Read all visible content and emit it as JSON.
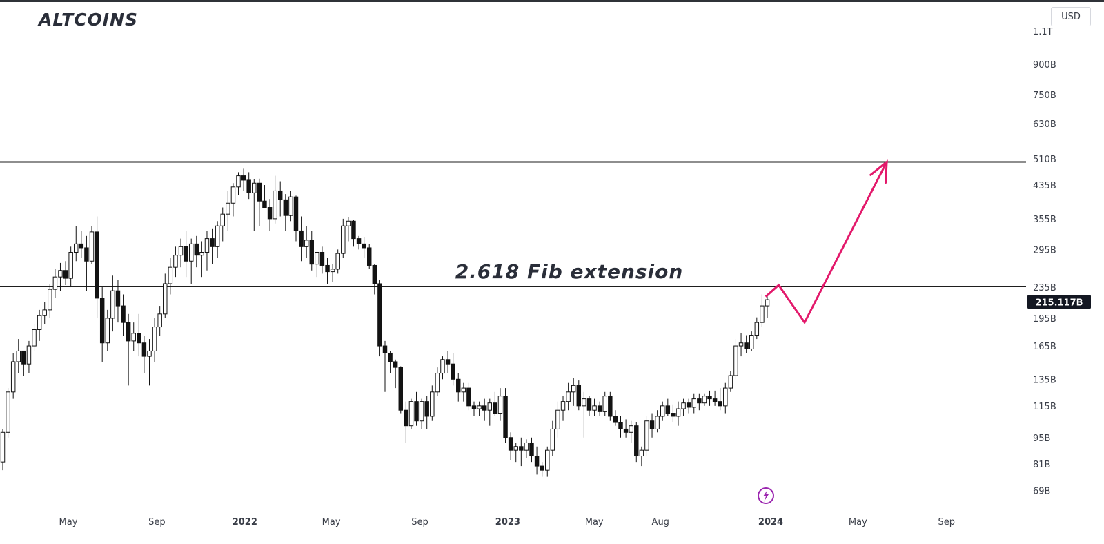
{
  "header": {
    "title": "ALTCOINS",
    "currency": "USD"
  },
  "chart_data": {
    "type": "candlestick",
    "title": "ALTCOINS",
    "y_scale": "log",
    "ylim_billions": [
      62,
      1210
    ],
    "y_tick_labels": [
      {
        "value": 1100,
        "label": "1.1T"
      },
      {
        "value": 900,
        "label": "900B"
      },
      {
        "value": 750,
        "label": "750B"
      },
      {
        "value": 630,
        "label": "630B"
      },
      {
        "value": 510,
        "label": "510B"
      },
      {
        "value": 435,
        "label": "435B"
      },
      {
        "value": 355,
        "label": "355B"
      },
      {
        "value": 295,
        "label": "295B"
      },
      {
        "value": 235,
        "label": "235B"
      },
      {
        "value": 195,
        "label": "195B"
      },
      {
        "value": 165,
        "label": "165B"
      },
      {
        "value": 135,
        "label": "135B"
      },
      {
        "value": 115,
        "label": "115B"
      },
      {
        "value": 95,
        "label": "95B"
      },
      {
        "value": 81,
        "label": "81B"
      },
      {
        "value": 69,
        "label": "69B"
      }
    ],
    "x_tick_labels": [
      {
        "date": "2021-05-01",
        "label": "May",
        "bold": false
      },
      {
        "date": "2021-09-01",
        "label": "Sep",
        "bold": false
      },
      {
        "date": "2022-01-01",
        "label": "2022",
        "bold": true
      },
      {
        "date": "2022-05-01",
        "label": "May",
        "bold": false
      },
      {
        "date": "2022-09-01",
        "label": "Sep",
        "bold": false
      },
      {
        "date": "2023-01-01",
        "label": "2023",
        "bold": true
      },
      {
        "date": "2023-05-01",
        "label": "May",
        "bold": false
      },
      {
        "date": "2023-08-01",
        "label": "Aug",
        "bold": false
      },
      {
        "date": "2024-01-01",
        "label": "2024",
        "bold": true
      },
      {
        "date": "2024-05-01",
        "label": "May",
        "bold": false
      },
      {
        "date": "2024-09-01",
        "label": "Sep",
        "bold": false
      }
    ],
    "last_price": {
      "value": 215.117,
      "label": "215.117B"
    },
    "horizontal_levels": [
      {
        "value": 500,
        "label": ""
      },
      {
        "value": 236,
        "label": "2.618 Fib extension"
      }
    ],
    "projection": {
      "color": "#e3196b",
      "points": [
        {
          "date": "2023-12-25",
          "value": 222
        },
        {
          "date": "2024-01-12",
          "value": 238
        },
        {
          "date": "2024-02-17",
          "value": 190
        },
        {
          "date": "2024-06-10",
          "value": 500
        }
      ]
    },
    "weekly_candles_billions": [
      [
        82,
        100,
        78,
        98
      ],
      [
        98,
        128,
        95,
        125
      ],
      [
        125,
        158,
        120,
        150
      ],
      [
        150,
        172,
        140,
        160
      ],
      [
        160,
        150,
        138,
        148
      ],
      [
        148,
        170,
        140,
        165
      ],
      [
        165,
        188,
        160,
        182
      ],
      [
        182,
        205,
        170,
        198
      ],
      [
        198,
        215,
        188,
        205
      ],
      [
        205,
        240,
        195,
        232
      ],
      [
        232,
        262,
        220,
        250
      ],
      [
        250,
        272,
        230,
        260
      ],
      [
        260,
        275,
        238,
        248
      ],
      [
        248,
        300,
        235,
        290
      ],
      [
        290,
        340,
        275,
        305
      ],
      [
        305,
        330,
        280,
        298
      ],
      [
        298,
        320,
        230,
        275
      ],
      [
        275,
        340,
        270,
        328
      ],
      [
        328,
        360,
        195,
        220
      ],
      [
        220,
        235,
        150,
        168
      ],
      [
        168,
        205,
        160,
        195
      ],
      [
        195,
        252,
        180,
        230
      ],
      [
        230,
        246,
        190,
        210
      ],
      [
        210,
        225,
        175,
        190
      ],
      [
        190,
        200,
        130,
        170
      ],
      [
        170,
        190,
        160,
        178
      ],
      [
        178,
        200,
        155,
        168
      ],
      [
        168,
        175,
        140,
        155
      ],
      [
        155,
        172,
        130,
        160
      ],
      [
        160,
        195,
        150,
        185
      ],
      [
        185,
        210,
        175,
        200
      ],
      [
        200,
        255,
        195,
        240
      ],
      [
        240,
        280,
        225,
        265
      ],
      [
        265,
        300,
        250,
        285
      ],
      [
        285,
        315,
        265,
        300
      ],
      [
        300,
        330,
        250,
        275
      ],
      [
        275,
        315,
        240,
        305
      ],
      [
        305,
        320,
        265,
        285
      ],
      [
        285,
        310,
        250,
        290
      ],
      [
        290,
        330,
        260,
        315
      ],
      [
        315,
        335,
        270,
        300
      ],
      [
        300,
        350,
        280,
        340
      ],
      [
        340,
        380,
        310,
        365
      ],
      [
        365,
        420,
        330,
        390
      ],
      [
        390,
        440,
        360,
        430
      ],
      [
        430,
        470,
        410,
        460
      ],
      [
        460,
        480,
        420,
        448
      ],
      [
        448,
        470,
        400,
        415
      ],
      [
        415,
        450,
        330,
        440
      ],
      [
        440,
        452,
        340,
        395
      ],
      [
        395,
        435,
        385,
        380
      ],
      [
        380,
        400,
        330,
        355
      ],
      [
        355,
        460,
        345,
        420
      ],
      [
        420,
        445,
        360,
        398
      ],
      [
        398,
        412,
        330,
        362
      ],
      [
        362,
        420,
        350,
        405
      ],
      [
        405,
        408,
        310,
        330
      ],
      [
        330,
        360,
        275,
        300
      ],
      [
        300,
        340,
        280,
        312
      ],
      [
        312,
        330,
        260,
        270
      ],
      [
        270,
        285,
        250,
        290
      ],
      [
        290,
        300,
        255,
        268
      ],
      [
        268,
        280,
        240,
        258
      ],
      [
        258,
        270,
        242,
        262
      ],
      [
        262,
        295,
        255,
        288
      ],
      [
        288,
        355,
        280,
        340
      ],
      [
        340,
        358,
        310,
        350
      ],
      [
        350,
        352,
        300,
        315
      ],
      [
        315,
        320,
        295,
        305
      ],
      [
        305,
        318,
        280,
        298
      ],
      [
        298,
        305,
        262,
        268
      ],
      [
        268,
        270,
        225,
        240
      ],
      [
        240,
        245,
        155,
        165
      ],
      [
        165,
        170,
        125,
        158
      ],
      [
        158,
        160,
        140,
        150
      ],
      [
        150,
        152,
        128,
        145
      ],
      [
        145,
        146,
        110,
        112
      ],
      [
        112,
        118,
        92,
        102
      ],
      [
        102,
        120,
        100,
        118
      ],
      [
        118,
        125,
        102,
        105
      ],
      [
        105,
        120,
        100,
        118
      ],
      [
        118,
        122,
        100,
        108
      ],
      [
        108,
        130,
        105,
        125
      ],
      [
        125,
        145,
        122,
        140
      ],
      [
        140,
        155,
        135,
        152
      ],
      [
        152,
        160,
        140,
        148
      ],
      [
        148,
        158,
        130,
        135
      ],
      [
        135,
        140,
        118,
        125
      ],
      [
        125,
        132,
        118,
        128
      ],
      [
        128,
        132,
        112,
        115
      ],
      [
        115,
        118,
        108,
        113
      ],
      [
        113,
        118,
        108,
        115
      ],
      [
        115,
        120,
        105,
        112
      ],
      [
        112,
        120,
        102,
        117
      ],
      [
        117,
        125,
        108,
        110
      ],
      [
        110,
        128,
        105,
        122
      ],
      [
        122,
        128,
        92,
        95
      ],
      [
        95,
        98,
        83,
        88
      ],
      [
        88,
        92,
        82,
        90
      ],
      [
        90,
        95,
        80,
        88
      ],
      [
        88,
        94,
        84,
        92
      ],
      [
        92,
        95,
        82,
        85
      ],
      [
        85,
        90,
        76,
        80
      ],
      [
        80,
        82,
        75,
        78
      ],
      [
        78,
        90,
        75,
        88
      ],
      [
        88,
        105,
        85,
        100
      ],
      [
        100,
        118,
        95,
        112
      ],
      [
        112,
        122,
        105,
        118
      ],
      [
        118,
        132,
        112,
        125
      ],
      [
        125,
        136,
        115,
        130
      ],
      [
        130,
        134,
        112,
        115
      ],
      [
        115,
        125,
        95,
        120
      ],
      [
        120,
        122,
        108,
        112
      ],
      [
        112,
        120,
        108,
        115
      ],
      [
        115,
        118,
        108,
        111
      ],
      [
        111,
        125,
        108,
        122
      ],
      [
        122,
        125,
        105,
        108
      ],
      [
        108,
        112,
        102,
        104
      ],
      [
        104,
        108,
        95,
        100
      ],
      [
        100,
        106,
        95,
        98
      ],
      [
        98,
        105,
        92,
        102
      ],
      [
        102,
        104,
        82,
        85
      ],
      [
        85,
        90,
        80,
        88
      ],
      [
        88,
        108,
        85,
        105
      ],
      [
        105,
        110,
        95,
        100
      ],
      [
        100,
        112,
        98,
        108
      ],
      [
        108,
        118,
        105,
        115
      ],
      [
        115,
        120,
        108,
        110
      ],
      [
        110,
        116,
        104,
        108
      ],
      [
        108,
        118,
        102,
        113
      ],
      [
        113,
        120,
        108,
        117
      ],
      [
        117,
        120,
        110,
        114
      ],
      [
        114,
        124,
        110,
        120
      ],
      [
        120,
        124,
        112,
        117
      ],
      [
        117,
        124,
        115,
        122
      ],
      [
        122,
        126,
        115,
        120
      ],
      [
        120,
        126,
        115,
        118
      ],
      [
        118,
        128,
        112,
        115
      ],
      [
        115,
        132,
        110,
        128
      ],
      [
        128,
        142,
        125,
        138
      ],
      [
        138,
        172,
        135,
        165
      ],
      [
        165,
        178,
        155,
        168
      ],
      [
        168,
        176,
        158,
        162
      ],
      [
        162,
        180,
        160,
        176
      ],
      [
        176,
        196,
        172,
        190
      ],
      [
        190,
        225,
        185,
        210
      ],
      [
        210,
        225,
        195,
        218
      ]
    ]
  }
}
